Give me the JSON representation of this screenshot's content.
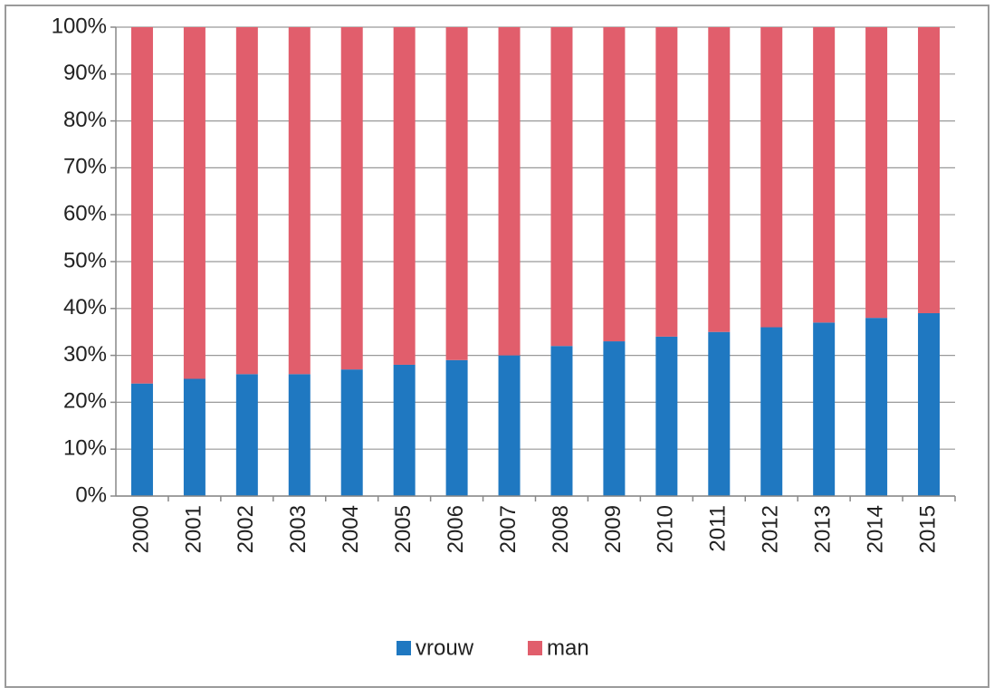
{
  "chart_data": {
    "type": "stacked_bar_100",
    "categories": [
      "2000",
      "2001",
      "2002",
      "2003",
      "2004",
      "2005",
      "2006",
      "2007",
      "2008",
      "2009",
      "2010",
      "2011",
      "2012",
      "2013",
      "2014",
      "2015"
    ],
    "series": [
      {
        "name": "vrouw",
        "color": "#1f78c1",
        "values": [
          24,
          25,
          26,
          26,
          27,
          28,
          29,
          30,
          32,
          33,
          34,
          35,
          36,
          37,
          38,
          39
        ]
      },
      {
        "name": "man",
        "color": "#e15e6c",
        "values": [
          76,
          75,
          74,
          74,
          73,
          72,
          71,
          70,
          68,
          67,
          66,
          65,
          64,
          63,
          62,
          61
        ]
      }
    ],
    "ylim": [
      0,
      100
    ],
    "yticks": [
      {
        "value": 0,
        "label": "0%"
      },
      {
        "value": 10,
        "label": "10%"
      },
      {
        "value": 20,
        "label": "20%"
      },
      {
        "value": 30,
        "label": "30%"
      },
      {
        "value": 40,
        "label": "40%"
      },
      {
        "value": 50,
        "label": "50%"
      },
      {
        "value": 60,
        "label": "60%"
      },
      {
        "value": 70,
        "label": "70%"
      },
      {
        "value": 80,
        "label": "80%"
      },
      {
        "value": 90,
        "label": "90%"
      },
      {
        "value": 100,
        "label": "100%"
      }
    ],
    "grid": true,
    "legend": "bottom"
  }
}
